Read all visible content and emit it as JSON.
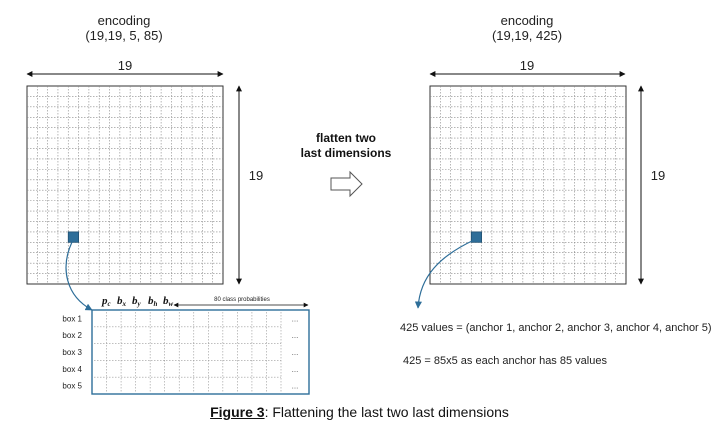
{
  "left_grid": {
    "title": "encoding",
    "shape": "(19,19, 5, 85)",
    "width_label": "19",
    "height_label": "19",
    "rows": 19,
    "cols": 19,
    "highlight_cell": [
      14,
      4
    ],
    "highlight_color": "#2e6e99"
  },
  "right_grid": {
    "title": "encoding",
    "shape": "(19,19, 425)",
    "width_label": "19",
    "height_label": "19",
    "rows": 19,
    "cols": 19,
    "highlight_cell": [
      14,
      4
    ],
    "highlight_color": "#2e6e99"
  },
  "operation": {
    "line1": "flatten two",
    "line2": "last dimensions"
  },
  "anchor_table": {
    "header_params": [
      {
        "sym": "p",
        "sub": "c"
      },
      {
        "sym": "b",
        "sub": "x"
      },
      {
        "sym": "b",
        "sub": "y"
      },
      {
        "sym": "b",
        "sub": "h"
      },
      {
        "sym": "b",
        "sub": "w"
      }
    ],
    "class_label": "80 class probabilities",
    "rows": [
      "box 1",
      "box 2",
      "box 3",
      "box 4",
      "box 5"
    ],
    "ellipsis": "...",
    "border_color": "#2e6e99"
  },
  "notes": {
    "values_line": "425 values = (anchor 1, anchor 2, anchor 3, anchor 4, anchor 5)",
    "count_line": "425 = 85x5 as each anchor has 85 values"
  },
  "caption": {
    "figure": "Figure 3",
    "text": ": Flattening the last two last dimensions"
  }
}
